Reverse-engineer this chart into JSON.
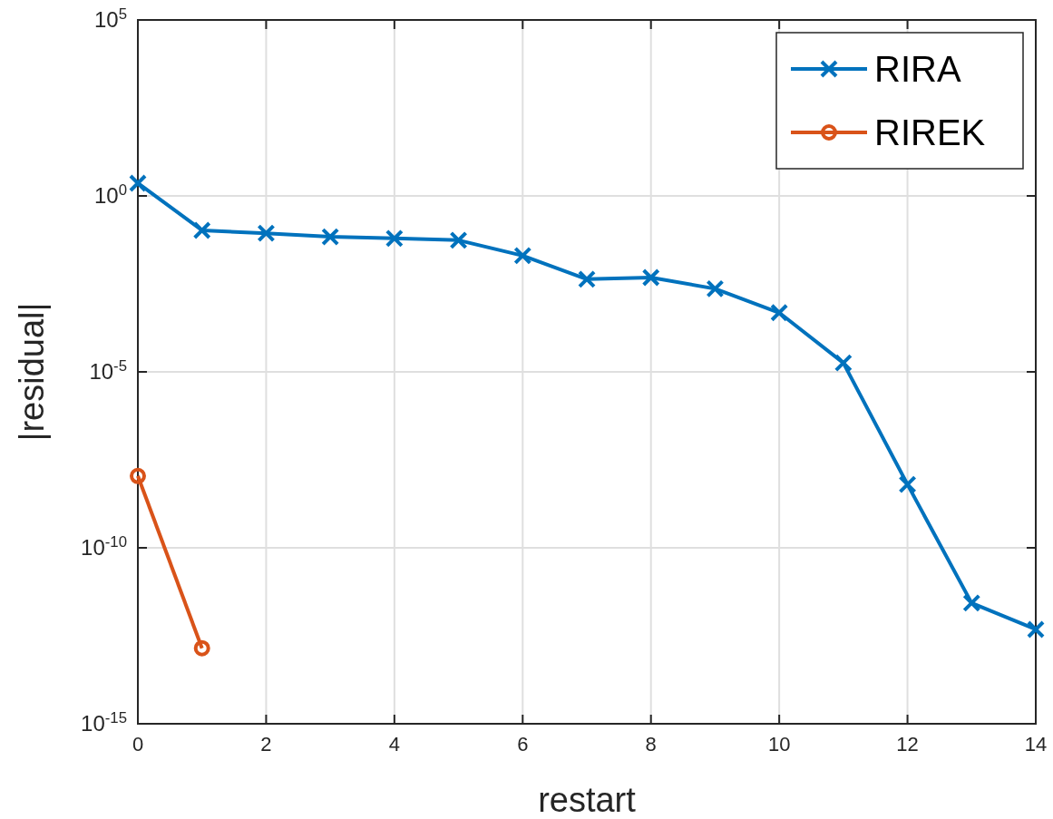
{
  "chart_data": {
    "type": "line",
    "xlabel": "restart",
    "ylabel": "|residual|",
    "log": "y",
    "grid": true,
    "legend": "top right",
    "xlim": [
      0,
      14
    ],
    "xticks": [
      0,
      2,
      4,
      6,
      8,
      10,
      12,
      14
    ],
    "ylim": [
      1e-15,
      100000
    ],
    "yticks": [
      {
        "value": 1e-15,
        "label": "10$^{-15}$"
      },
      {
        "value": 1e-10,
        "label": "10$^{-10}$"
      },
      {
        "value": 1e-05,
        "label": "10$^{-5}$"
      },
      {
        "value": 1,
        "label": "10$^{0}$"
      },
      {
        "value": 100000,
        "label": "10$^{5}$"
      }
    ],
    "series": [
      {
        "name": "RIRA",
        "color": "#0072bd",
        "marker": "cross",
        "x": [
          0,
          1,
          2,
          3,
          4,
          5,
          6,
          7,
          8,
          9,
          10,
          11,
          12,
          13,
          14
        ],
        "values": [
          2.3,
          0.105,
          0.087,
          0.069,
          0.062,
          0.055,
          0.02,
          0.0043,
          0.0048,
          0.0023,
          0.00048,
          1.8e-05,
          6.3e-09,
          2.7e-12,
          4.8e-13
        ]
      },
      {
        "name": "RIREK",
        "color": "#d95319",
        "marker": "circle",
        "x": [
          0,
          1
        ],
        "values": [
          1.1e-08,
          1.4e-13
        ]
      }
    ]
  }
}
